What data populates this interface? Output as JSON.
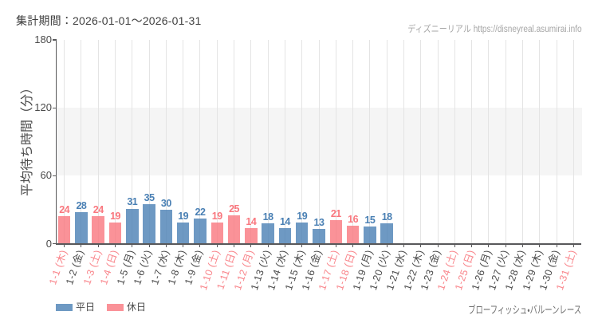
{
  "header": {
    "period_label": "集計期間：2026-01-01〜2026-01-31",
    "watermark_site": "ディズニーリアル",
    "watermark_url": "https://disneyreal.asumirai.info"
  },
  "footer": {
    "attraction_name": "ブローフィッシュ・バルーンレース"
  },
  "legend": {
    "items": [
      {
        "label": "平日",
        "key": "weekday",
        "color": "#6e99c3"
      },
      {
        "label": "休日",
        "key": "holiday",
        "color": "#fa9298"
      }
    ]
  },
  "colors": {
    "weekday_bar_rgba": "rgba(74,128,180,0.8)",
    "holiday_bar_rgba": "rgba(249,119,126,0.8)",
    "weekday_text": "#4a80b4",
    "holiday_text": "#f9777e",
    "xlabel_normal": "#4a4a4a",
    "xlabel_holiday": "#f9858b",
    "gridline": "#e4e4e4",
    "band": "#f5f5f5",
    "axis": "#58585a"
  },
  "chart_data": {
    "type": "bar",
    "title": "集計期間：2026-01-01〜2026-01-31",
    "xlabel": "",
    "ylabel": "平均待ち時間（分）",
    "ylim": [
      0,
      180
    ],
    "yticks": [
      0,
      60,
      120,
      180
    ],
    "shaded_band_y": [
      60,
      120
    ],
    "grid": "vertical-per-category",
    "legend_position": "bottom-left",
    "categories": [
      "1-1 (木)",
      "1-2 (金)",
      "1-3 (土)",
      "1-4 (日)",
      "1-5 (月)",
      "1-6 (火)",
      "1-7 (水)",
      "1-8 (木)",
      "1-9 (金)",
      "1-10 (土)",
      "1-11 (日)",
      "1-12 (月)",
      "1-13 (火)",
      "1-14 (水)",
      "1-15 (木)",
      "1-16 (金)",
      "1-17 (土)",
      "1-18 (日)",
      "1-19 (月)",
      "1-20 (火)",
      "1-21 (水)",
      "1-22 (木)",
      "1-23 (金)",
      "1-24 (土)",
      "1-25 (日)",
      "1-26 (月)",
      "1-27 (火)",
      "1-28 (水)",
      "1-29 (木)",
      "1-30 (金)",
      "1-31 (土)"
    ],
    "values": [
      24,
      28,
      24,
      19,
      31,
      35,
      30,
      19,
      22,
      19,
      25,
      14,
      18,
      14,
      19,
      13,
      21,
      16,
      15,
      18,
      null,
      null,
      null,
      null,
      null,
      null,
      null,
      null,
      null,
      null,
      null
    ],
    "day_types": [
      "holiday",
      "weekday",
      "holiday",
      "holiday",
      "weekday",
      "weekday",
      "weekday",
      "weekday",
      "weekday",
      "holiday",
      "holiday",
      "holiday",
      "weekday",
      "weekday",
      "weekday",
      "weekday",
      "holiday",
      "holiday",
      "weekday",
      "weekday",
      "weekday",
      "weekday",
      "weekday",
      "holiday",
      "holiday",
      "weekday",
      "weekday",
      "weekday",
      "weekday",
      "weekday",
      "holiday"
    ],
    "series": [
      {
        "name": "平日",
        "values": [
          null,
          28,
          null,
          null,
          31,
          35,
          30,
          19,
          22,
          null,
          null,
          null,
          18,
          14,
          19,
          13,
          null,
          null,
          15,
          18,
          null,
          null,
          null,
          null,
          null,
          null,
          null,
          null,
          null,
          null,
          null
        ]
      },
      {
        "name": "休日",
        "values": [
          24,
          null,
          24,
          19,
          null,
          null,
          null,
          null,
          null,
          19,
          25,
          14,
          null,
          null,
          null,
          null,
          21,
          16,
          null,
          null,
          null,
          null,
          null,
          null,
          null,
          null,
          null,
          null,
          null,
          null,
          null
        ]
      }
    ]
  }
}
